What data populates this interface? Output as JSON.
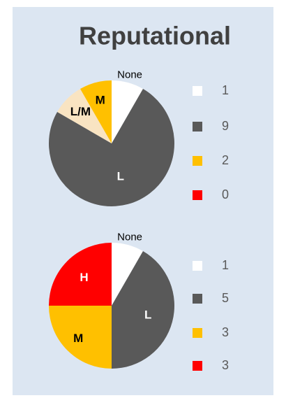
{
  "title": "Reputational",
  "chart_data": [
    {
      "type": "pie",
      "categories": [
        "None",
        "L",
        "L/M",
        "M"
      ],
      "values": [
        1,
        9,
        1,
        1
      ],
      "colors": [
        "#ffffff",
        "#595959",
        "#f9e4c2",
        "#ffc000"
      ],
      "legend": {
        "colors": [
          "#ffffff",
          "#595959",
          "#ffc000",
          "#ff0000"
        ],
        "values": [
          1,
          9,
          2,
          0
        ]
      }
    },
    {
      "type": "pie",
      "categories": [
        "None",
        "L",
        "M",
        "H"
      ],
      "values": [
        1,
        5,
        3,
        3
      ],
      "colors": [
        "#ffffff",
        "#595959",
        "#ffc000",
        "#ff0000"
      ],
      "legend": {
        "colors": [
          "#ffffff",
          "#595959",
          "#ffc000",
          "#ff0000"
        ],
        "values": [
          1,
          5,
          3,
          3
        ]
      }
    }
  ]
}
